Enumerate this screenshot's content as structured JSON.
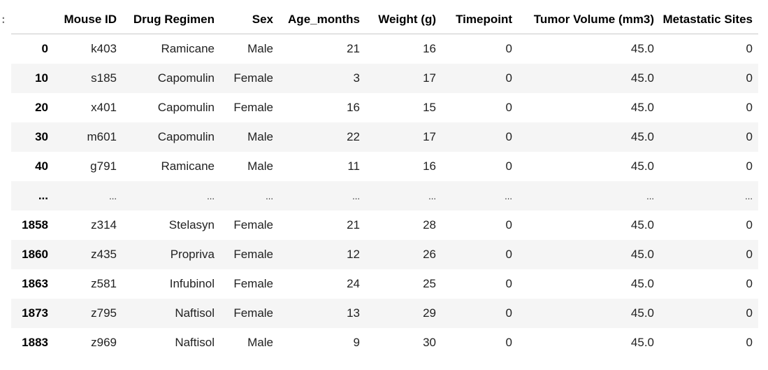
{
  "gutter": ":",
  "table": {
    "columns": [
      "",
      "Mouse ID",
      "Drug Regimen",
      "Sex",
      "Age_months",
      "Weight (g)",
      "Timepoint",
      "Tumor Volume (mm3)",
      "Metastatic Sites"
    ],
    "rows": [
      {
        "index": "0",
        "cells": [
          "k403",
          "Ramicane",
          "Male",
          "21",
          "16",
          "0",
          "45.0",
          "0"
        ]
      },
      {
        "index": "10",
        "cells": [
          "s185",
          "Capomulin",
          "Female",
          "3",
          "17",
          "0",
          "45.0",
          "0"
        ]
      },
      {
        "index": "20",
        "cells": [
          "x401",
          "Capomulin",
          "Female",
          "16",
          "15",
          "0",
          "45.0",
          "0"
        ]
      },
      {
        "index": "30",
        "cells": [
          "m601",
          "Capomulin",
          "Male",
          "22",
          "17",
          "0",
          "45.0",
          "0"
        ]
      },
      {
        "index": "40",
        "cells": [
          "g791",
          "Ramicane",
          "Male",
          "11",
          "16",
          "0",
          "45.0",
          "0"
        ]
      },
      {
        "index": "...",
        "cells": [
          "...",
          "...",
          "...",
          "...",
          "...",
          "...",
          "...",
          "..."
        ]
      },
      {
        "index": "1858",
        "cells": [
          "z314",
          "Stelasyn",
          "Female",
          "21",
          "28",
          "0",
          "45.0",
          "0"
        ]
      },
      {
        "index": "1860",
        "cells": [
          "z435",
          "Propriva",
          "Female",
          "12",
          "26",
          "0",
          "45.0",
          "0"
        ]
      },
      {
        "index": "1863",
        "cells": [
          "z581",
          "Infubinol",
          "Female",
          "24",
          "25",
          "0",
          "45.0",
          "0"
        ]
      },
      {
        "index": "1873",
        "cells": [
          "z795",
          "Naftisol",
          "Female",
          "13",
          "29",
          "0",
          "45.0",
          "0"
        ]
      },
      {
        "index": "1883",
        "cells": [
          "z969",
          "Naftisol",
          "Male",
          "9",
          "30",
          "0",
          "45.0",
          "0"
        ]
      }
    ]
  }
}
